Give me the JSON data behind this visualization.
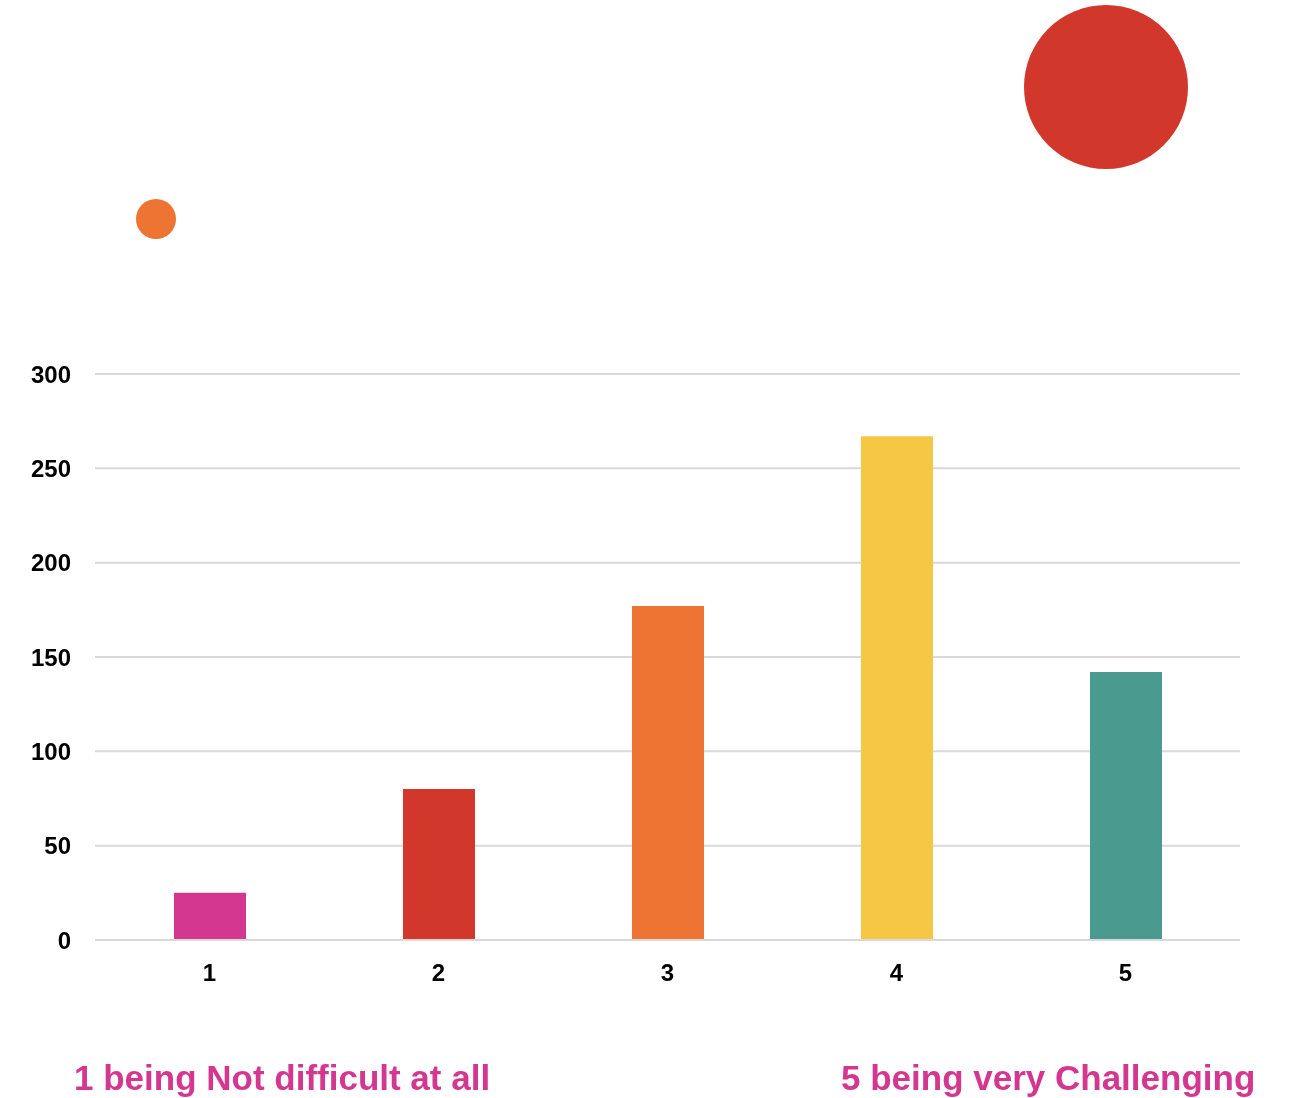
{
  "chart_data": {
    "type": "bar",
    "categories": [
      "1",
      "2",
      "3",
      "4",
      "5"
    ],
    "values": [
      25,
      80,
      177,
      267,
      142
    ],
    "colors": [
      "#d43790",
      "#d1372b",
      "#ed7432",
      "#f6c645",
      "#4b9a8f"
    ],
    "ylim": [
      0,
      300
    ],
    "yticks": [
      0,
      50,
      100,
      150,
      200,
      250,
      300
    ],
    "grid": "y",
    "annotations": [
      "1 being Not difficult at all",
      "5 being very Challenging"
    ]
  }
}
